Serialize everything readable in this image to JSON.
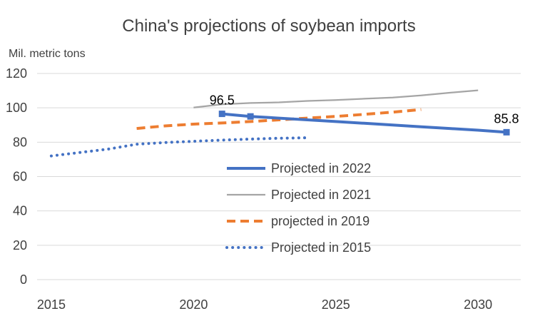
{
  "chart_data": {
    "type": "line",
    "title": "China's projections of soybean imports",
    "ylabel": "Mil. metric tons",
    "xlabel": "",
    "xlim": [
      2014.5,
      2031.5
    ],
    "ylim": [
      0,
      120
    ],
    "x_ticks": [
      "2015",
      "2020",
      "2025",
      "2030"
    ],
    "y_ticks": [
      "0",
      "20",
      "40",
      "60",
      "80",
      "100",
      "120"
    ],
    "grid": "horizontal",
    "legend_position": "center",
    "series": [
      {
        "name": "Projected in 2022",
        "color": "#4472C4",
        "style": "solid-thick",
        "x": [
          2021,
          2022,
          2023,
          2024,
          2025,
          2026,
          2027,
          2028,
          2029,
          2030,
          2031
        ],
        "values": [
          96.5,
          95.0,
          94.0,
          93.0,
          92.0,
          91.0,
          90.0,
          89.0,
          88.0,
          87.0,
          85.8
        ],
        "markers_at": [
          2021,
          2022,
          2031
        ],
        "data_labels": [
          {
            "x": 2021,
            "text": "96.5"
          },
          {
            "x": 2031,
            "text": "85.8"
          }
        ]
      },
      {
        "name": "Projected in 2021",
        "color": "#A5A5A5",
        "style": "solid-thin",
        "x": [
          2020,
          2021,
          2022,
          2023,
          2024,
          2025,
          2026,
          2027,
          2028,
          2029,
          2030
        ],
        "values": [
          100.2,
          102.0,
          102.8,
          103.2,
          104.0,
          104.5,
          105.3,
          106.0,
          107.2,
          108.8,
          110.2
        ]
      },
      {
        "name": "projected in 2019",
        "color": "#ED7D31",
        "style": "dashed",
        "x": [
          2018,
          2019,
          2020,
          2021,
          2022,
          2023,
          2024,
          2025,
          2026,
          2027,
          2028
        ],
        "values": [
          88.0,
          89.5,
          90.5,
          91.2,
          92.0,
          93.0,
          94.0,
          95.0,
          96.2,
          97.5,
          99.0
        ]
      },
      {
        "name": "Projected in 2015",
        "color": "#4472C4",
        "style": "dotted",
        "x": [
          2015,
          2016,
          2017,
          2018,
          2019,
          2020,
          2021,
          2022,
          2023,
          2024
        ],
        "values": [
          72.0,
          74.0,
          76.0,
          78.8,
          79.8,
          80.5,
          81.2,
          81.8,
          82.3,
          82.6
        ]
      }
    ]
  }
}
